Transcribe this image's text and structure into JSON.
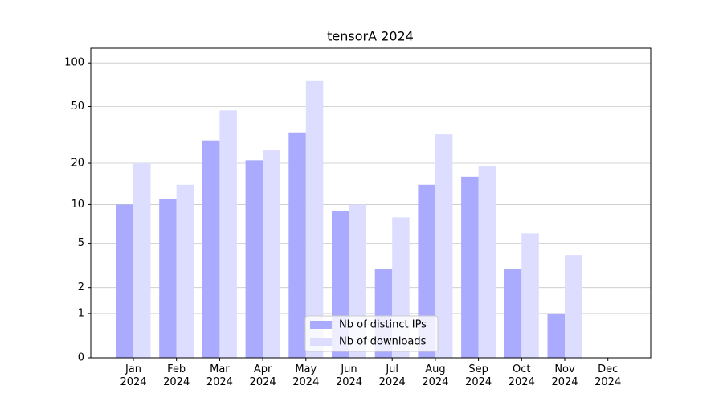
{
  "chart_data": {
    "type": "bar",
    "title": "tensorA 2024",
    "categories": [
      "Jan\n2024",
      "Feb\n2024",
      "Mar\n2024",
      "Apr\n2024",
      "May\n2024",
      "Jun\n2024",
      "Jul\n2024",
      "Aug\n2024",
      "Sep\n2024",
      "Oct\n2024",
      "Nov\n2024",
      "Dec\n2024"
    ],
    "series": [
      {
        "name": "Nb of distinct IPs",
        "color": "#aaaaff",
        "values": [
          10,
          11,
          29,
          21,
          33,
          9,
          3,
          14,
          16,
          3,
          1,
          0
        ]
      },
      {
        "name": "Nb of downloads",
        "color": "#ddddff",
        "values": [
          20,
          14,
          47,
          25,
          75,
          10,
          8,
          32,
          19,
          6,
          4,
          0
        ]
      }
    ],
    "yscale": "log1p",
    "ylim": [
      0,
      126
    ],
    "yticks": [
      0,
      1,
      2,
      5,
      10,
      20,
      50,
      100
    ],
    "grid": true,
    "legend": "bottom"
  }
}
